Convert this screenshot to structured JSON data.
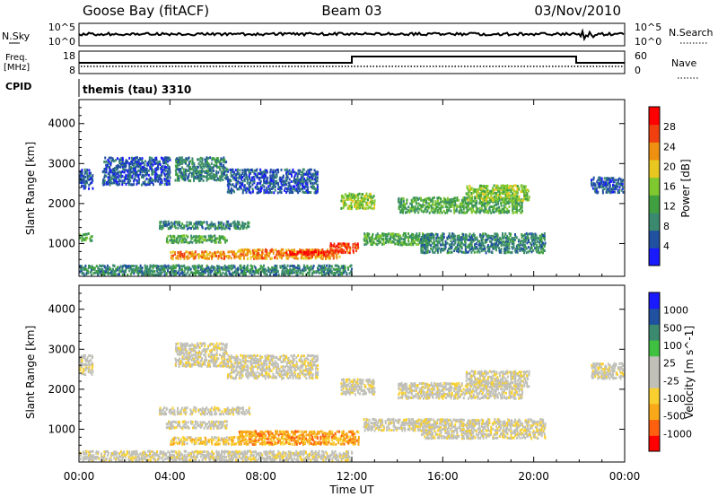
{
  "header": {
    "station": "Goose Bay (fitACF)",
    "beam": "Beam 03",
    "date": "03/Nov/2010"
  },
  "panels": {
    "nsky": {
      "label": "N.Sky",
      "tick_top": "10^5",
      "tick_bottom": "10^0",
      "right_label": "N.Search",
      "right_tick_top": "10^5",
      "right_tick_bottom": "10^0"
    },
    "freq": {
      "label_line1": "Freq.",
      "label_line2": "[MHz]",
      "tick_top": "18",
      "tick_bottom": "8",
      "right_label": "Nave",
      "right_tick_top": "60",
      "right_tick_bottom": "0"
    },
    "cpid": {
      "label": "CPID",
      "value": "themis (tau) 3310"
    }
  },
  "colors": {
    "power_scale": [
      "#1a1aff",
      "#2050a0",
      "#3b8a70",
      "#40a040",
      "#80c830",
      "#e8c820",
      "#f09010",
      "#f04010",
      "#ff0000"
    ],
    "velocity_scale": [
      "#ff0000",
      "#ff6010",
      "#f8a818",
      "#f8d030",
      "#c0c0b8",
      "#c0c0b8",
      "#40c040",
      "#3b8a70",
      "#2050a0",
      "#1a1aff"
    ]
  },
  "chart_data": [
    {
      "type": "heatmap",
      "name_key": "power",
      "ylabel": "Slant Range [km]",
      "xlabel": "Time UT",
      "x_ticks": [
        "00:00",
        "04:00",
        "08:00",
        "12:00",
        "16:00",
        "20:00",
        "00:00"
      ],
      "x_tick_hours": [
        0,
        4,
        8,
        12,
        16,
        20,
        24
      ],
      "xlim": [
        0,
        24
      ],
      "y_ticks": [
        1000,
        2000,
        3000,
        4000
      ],
      "ylim": [
        180,
        4600
      ],
      "colorbar_label": "Power [dB]",
      "colorbar_ticks": [
        "28",
        "24",
        "20",
        "16",
        "12",
        "8",
        "4"
      ],
      "regions": [
        {
          "t0": 0.0,
          "t1": 0.6,
          "r0": 2400,
          "r1": 2900,
          "level": 1
        },
        {
          "t0": 0.0,
          "t1": 0.6,
          "r0": 1100,
          "r1": 1300,
          "level": 3
        },
        {
          "t0": 1.0,
          "t1": 4.0,
          "r0": 2500,
          "r1": 3200,
          "level": 1
        },
        {
          "t0": 4.2,
          "t1": 6.5,
          "r0": 2600,
          "r1": 3200,
          "level": 2
        },
        {
          "t0": 6.5,
          "t1": 10.5,
          "r0": 2300,
          "r1": 2900,
          "level": 1
        },
        {
          "t0": 3.5,
          "t1": 7.5,
          "r0": 1400,
          "r1": 1600,
          "level": 2
        },
        {
          "t0": 3.8,
          "t1": 6.5,
          "r0": 1050,
          "r1": 1250,
          "level": 3
        },
        {
          "t0": 4.0,
          "t1": 7.0,
          "r0": 650,
          "r1": 850,
          "level": 6
        },
        {
          "t0": 7.0,
          "t1": 11.5,
          "r0": 650,
          "r1": 900,
          "level": 6
        },
        {
          "t0": 9.0,
          "t1": 11.0,
          "r0": 750,
          "r1": 850,
          "level": 8
        },
        {
          "t0": 11.0,
          "t1": 12.3,
          "r0": 800,
          "r1": 1050,
          "level": 7
        },
        {
          "t0": 11.5,
          "t1": 13.0,
          "r0": 1900,
          "r1": 2300,
          "level": 4
        },
        {
          "t0": 12.5,
          "t1": 15.5,
          "r0": 1000,
          "r1": 1300,
          "level": 3
        },
        {
          "t0": 14.0,
          "t1": 19.5,
          "r0": 1800,
          "r1": 2200,
          "level": 3
        },
        {
          "t0": 17.0,
          "t1": 19.8,
          "r0": 2100,
          "r1": 2500,
          "level": 4
        },
        {
          "t0": 15.0,
          "t1": 20.5,
          "r0": 800,
          "r1": 1300,
          "level": 2
        },
        {
          "t0": 0.0,
          "t1": 12.0,
          "r0": 200,
          "r1": 500,
          "level": 2
        },
        {
          "t0": 22.5,
          "t1": 24.0,
          "r0": 2300,
          "r1": 2700,
          "level": 1
        }
      ]
    },
    {
      "type": "heatmap",
      "name_key": "velocity",
      "ylabel": "Slant Range [km]",
      "xlabel": "Time UT",
      "x_ticks": [
        "00:00",
        "04:00",
        "08:00",
        "12:00",
        "16:00",
        "20:00",
        "00:00"
      ],
      "x_tick_hours": [
        0,
        4,
        8,
        12,
        16,
        20,
        24
      ],
      "xlim": [
        0,
        24
      ],
      "y_ticks": [
        1000,
        2000,
        3000,
        4000
      ],
      "ylim": [
        180,
        4600
      ],
      "colorbar_label": "Velocity [m s^-1]",
      "colorbar_ticks": [
        "1000",
        "500",
        "100",
        "25",
        "-25",
        "-100",
        "-500",
        "-1000"
      ],
      "regions": [
        {
          "t0": 0.0,
          "t1": 0.6,
          "r0": 2400,
          "r1": 2900,
          "level": 4
        },
        {
          "t0": 4.2,
          "t1": 6.5,
          "r0": 2600,
          "r1": 3200,
          "level": 4
        },
        {
          "t0": 6.5,
          "t1": 10.5,
          "r0": 2300,
          "r1": 2900,
          "level": 4
        },
        {
          "t0": 3.5,
          "t1": 7.5,
          "r0": 1400,
          "r1": 1600,
          "level": 4
        },
        {
          "t0": 3.8,
          "t1": 6.5,
          "r0": 1050,
          "r1": 1250,
          "level": 4
        },
        {
          "t0": 4.0,
          "t1": 7.0,
          "r0": 650,
          "r1": 850,
          "level": 3
        },
        {
          "t0": 7.0,
          "t1": 12.3,
          "r0": 650,
          "r1": 1000,
          "level": 2
        },
        {
          "t0": 11.5,
          "t1": 13.0,
          "r0": 1900,
          "r1": 2300,
          "level": 4
        },
        {
          "t0": 12.5,
          "t1": 15.5,
          "r0": 1000,
          "r1": 1300,
          "level": 4
        },
        {
          "t0": 14.0,
          "t1": 19.5,
          "r0": 1800,
          "r1": 2200,
          "level": 4
        },
        {
          "t0": 17.0,
          "t1": 19.8,
          "r0": 2100,
          "r1": 2500,
          "level": 4
        },
        {
          "t0": 15.0,
          "t1": 20.5,
          "r0": 800,
          "r1": 1300,
          "level": 4
        },
        {
          "t0": 0.0,
          "t1": 12.0,
          "r0": 200,
          "r1": 500,
          "level": 4
        },
        {
          "t0": 22.5,
          "t1": 24.0,
          "r0": 2300,
          "r1": 2700,
          "level": 4
        }
      ]
    }
  ]
}
